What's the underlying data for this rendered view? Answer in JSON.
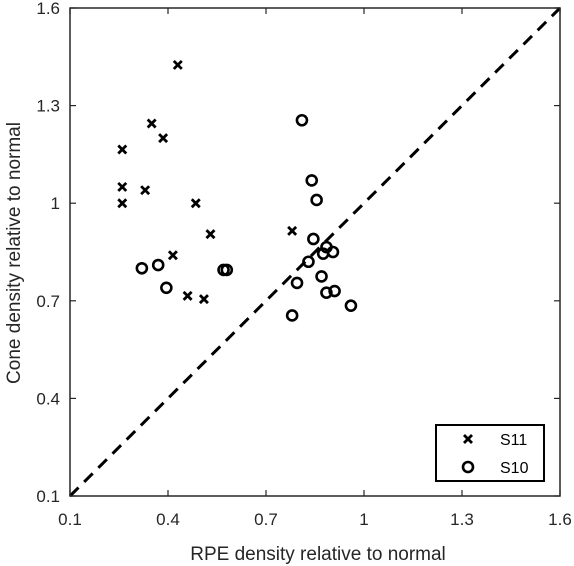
{
  "chart_data": {
    "type": "scatter",
    "xlabel": "RPE density relative to normal",
    "ylabel": "Cone density relative to normal",
    "xlim": [
      0.1,
      1.6
    ],
    "ylim": [
      0.1,
      1.6
    ],
    "xticks": [
      "0.1",
      "0.4",
      "0.7",
      "1",
      "1.3",
      "1.6"
    ],
    "yticks": [
      "0.1",
      "0.4",
      "0.7",
      "1",
      "1.3",
      "1.6"
    ],
    "grid": false,
    "legend_position": "bottom-right",
    "reference_line": "y = x (dashed)",
    "series": [
      {
        "name": "S11",
        "marker": "x",
        "points": [
          [
            0.26,
            1.165
          ],
          [
            0.26,
            1.05
          ],
          [
            0.26,
            1.0
          ],
          [
            0.33,
            1.04
          ],
          [
            0.35,
            1.245
          ],
          [
            0.385,
            1.2
          ],
          [
            0.43,
            1.425
          ],
          [
            0.485,
            1.0
          ],
          [
            0.53,
            0.905
          ],
          [
            0.415,
            0.84
          ],
          [
            0.46,
            0.715
          ],
          [
            0.51,
            0.705
          ],
          [
            0.78,
            0.915
          ]
        ]
      },
      {
        "name": "S10",
        "marker": "o",
        "points": [
          [
            0.32,
            0.8
          ],
          [
            0.37,
            0.81
          ],
          [
            0.395,
            0.74
          ],
          [
            0.57,
            0.795
          ],
          [
            0.58,
            0.795
          ],
          [
            0.81,
            1.255
          ],
          [
            0.84,
            1.07
          ],
          [
            0.855,
            1.01
          ],
          [
            0.845,
            0.89
          ],
          [
            0.885,
            0.865
          ],
          [
            0.875,
            0.845
          ],
          [
            0.905,
            0.85
          ],
          [
            0.83,
            0.82
          ],
          [
            0.87,
            0.775
          ],
          [
            0.795,
            0.755
          ],
          [
            0.885,
            0.725
          ],
          [
            0.91,
            0.73
          ],
          [
            0.96,
            0.685
          ],
          [
            0.78,
            0.655
          ]
        ]
      }
    ]
  }
}
